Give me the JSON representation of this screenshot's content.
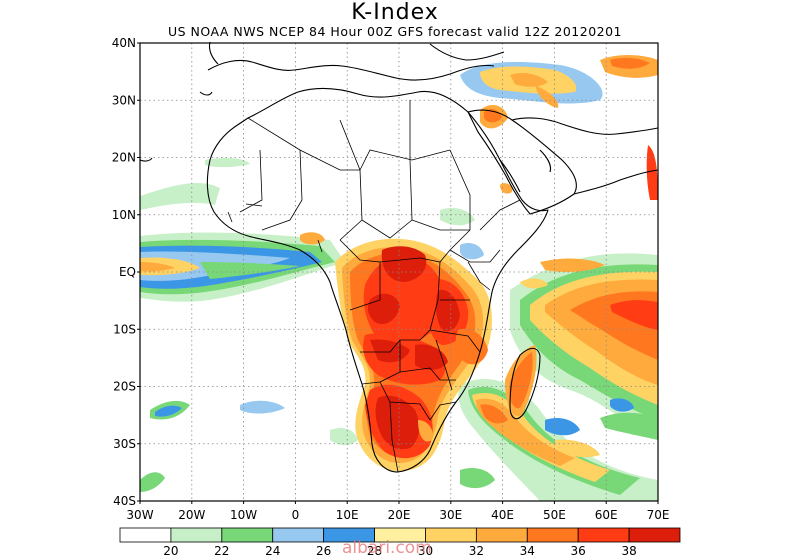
{
  "title": "K-Index",
  "subtitle": "US NOAA NWS NCEP 84 Hour 00Z GFS forecast valid 12Z 20120201",
  "watermark": "albari.com",
  "lat_labels": [
    "40N",
    "30N",
    "20N",
    "10N",
    "EQ",
    "10S",
    "20S",
    "30S",
    "40S"
  ],
  "lon_labels": [
    "30W",
    "20W",
    "10W",
    "0",
    "10E",
    "20E",
    "30E",
    "40E",
    "50E",
    "60E",
    "70E"
  ],
  "colorbar": {
    "colors": [
      "#ffffff",
      "#c8f0c8",
      "#78d878",
      "#96c8f0",
      "#3c96e6",
      "#fff0a0",
      "#ffd264",
      "#ffaa3c",
      "#ff7820",
      "#ff3c14",
      "#dc1e0a"
    ],
    "ticks": [
      "20",
      "22",
      "24",
      "26",
      "28",
      "30",
      "32",
      "34",
      "36",
      "38"
    ]
  },
  "colors": {
    "coast": "#000000",
    "grid": "#888888"
  }
}
